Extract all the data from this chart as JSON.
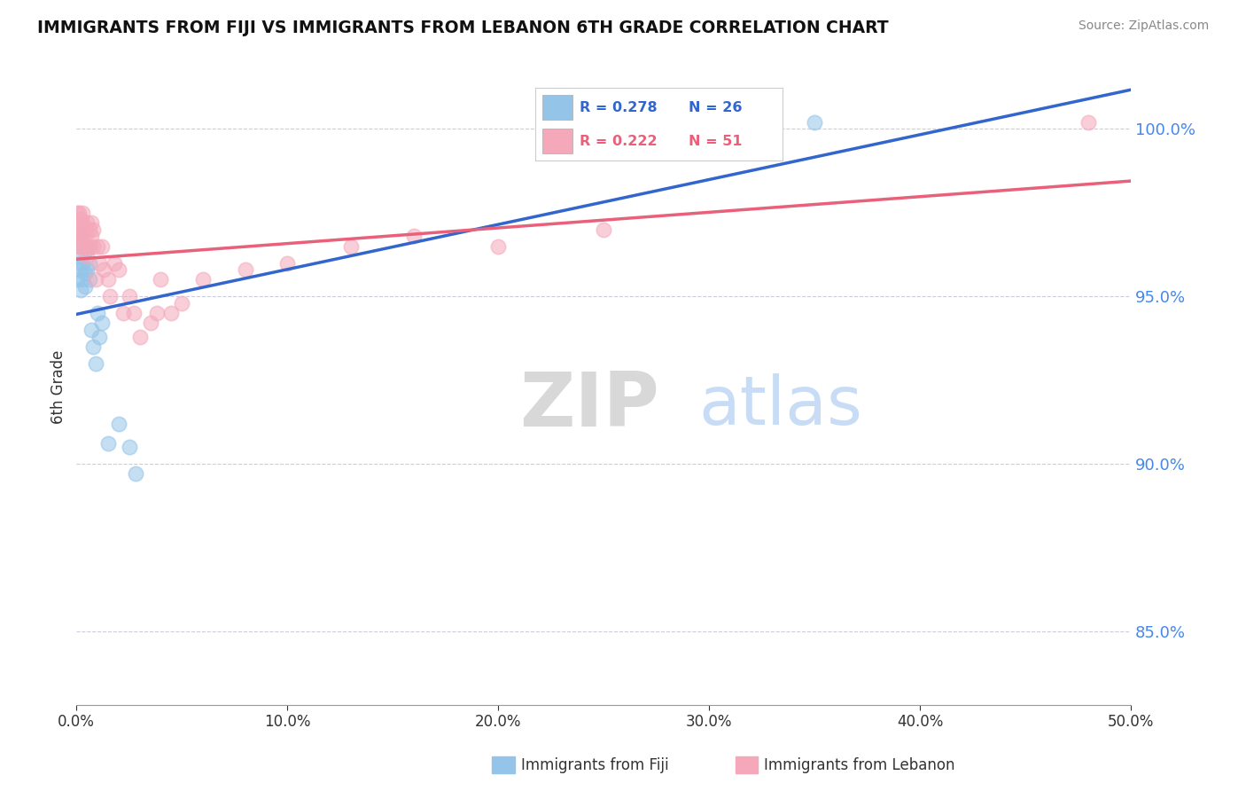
{
  "title": "IMMIGRANTS FROM FIJI VS IMMIGRANTS FROM LEBANON 6TH GRADE CORRELATION CHART",
  "source": "Source: ZipAtlas.com",
  "ylabel_left": "6th Grade",
  "legend_fiji": "Immigrants from Fiji",
  "legend_lebanon": "Immigrants from Lebanon",
  "R_fiji": 0.278,
  "N_fiji": 26,
  "R_lebanon": 0.222,
  "N_lebanon": 51,
  "color_fiji": "#94c4e8",
  "color_lebanon": "#f4a8ba",
  "line_color_fiji": "#3366cc",
  "line_color_lebanon": "#e8607a",
  "xmin": 0.0,
  "xmax": 0.5,
  "ymin": 0.828,
  "ymax": 1.018,
  "yticks": [
    0.85,
    0.9,
    0.95,
    1.0
  ],
  "xtick_labels": [
    "0.0%",
    "10.0%",
    "20.0%",
    "30.0%",
    "40.0%",
    "50.0%"
  ],
  "xticks": [
    0.0,
    0.1,
    0.2,
    0.3,
    0.4,
    0.5
  ],
  "watermark_zip": "ZIP",
  "watermark_atlas": "atlas",
  "fiji_x": [
    0.0005,
    0.001,
    0.001,
    0.0015,
    0.002,
    0.002,
    0.002,
    0.003,
    0.003,
    0.004,
    0.004,
    0.005,
    0.005,
    0.006,
    0.006,
    0.007,
    0.008,
    0.009,
    0.01,
    0.011,
    0.012,
    0.015,
    0.02,
    0.025,
    0.028,
    0.35
  ],
  "fiji_y": [
    0.955,
    0.96,
    0.965,
    0.958,
    0.952,
    0.962,
    0.968,
    0.955,
    0.96,
    0.953,
    0.957,
    0.958,
    0.964,
    0.96,
    0.955,
    0.94,
    0.935,
    0.93,
    0.945,
    0.938,
    0.942,
    0.906,
    0.912,
    0.905,
    0.897,
    1.002
  ],
  "lebanon_x": [
    0.0003,
    0.0005,
    0.001,
    0.001,
    0.001,
    0.001,
    0.002,
    0.002,
    0.002,
    0.002,
    0.003,
    0.003,
    0.003,
    0.003,
    0.004,
    0.004,
    0.005,
    0.005,
    0.005,
    0.006,
    0.006,
    0.007,
    0.007,
    0.008,
    0.008,
    0.009,
    0.01,
    0.011,
    0.012,
    0.013,
    0.015,
    0.016,
    0.018,
    0.02,
    0.022,
    0.025,
    0.027,
    0.03,
    0.035,
    0.038,
    0.04,
    0.045,
    0.05,
    0.06,
    0.08,
    0.1,
    0.13,
    0.16,
    0.2,
    0.25,
    0.48
  ],
  "lebanon_y": [
    0.975,
    0.972,
    0.968,
    0.97,
    0.975,
    0.965,
    0.97,
    0.973,
    0.968,
    0.965,
    0.972,
    0.968,
    0.975,
    0.965,
    0.97,
    0.968,
    0.972,
    0.965,
    0.962,
    0.97,
    0.965,
    0.968,
    0.972,
    0.965,
    0.97,
    0.955,
    0.965,
    0.96,
    0.965,
    0.958,
    0.955,
    0.95,
    0.96,
    0.958,
    0.945,
    0.95,
    0.945,
    0.938,
    0.942,
    0.945,
    0.955,
    0.945,
    0.948,
    0.955,
    0.958,
    0.96,
    0.965,
    0.968,
    0.965,
    0.97,
    1.002
  ]
}
